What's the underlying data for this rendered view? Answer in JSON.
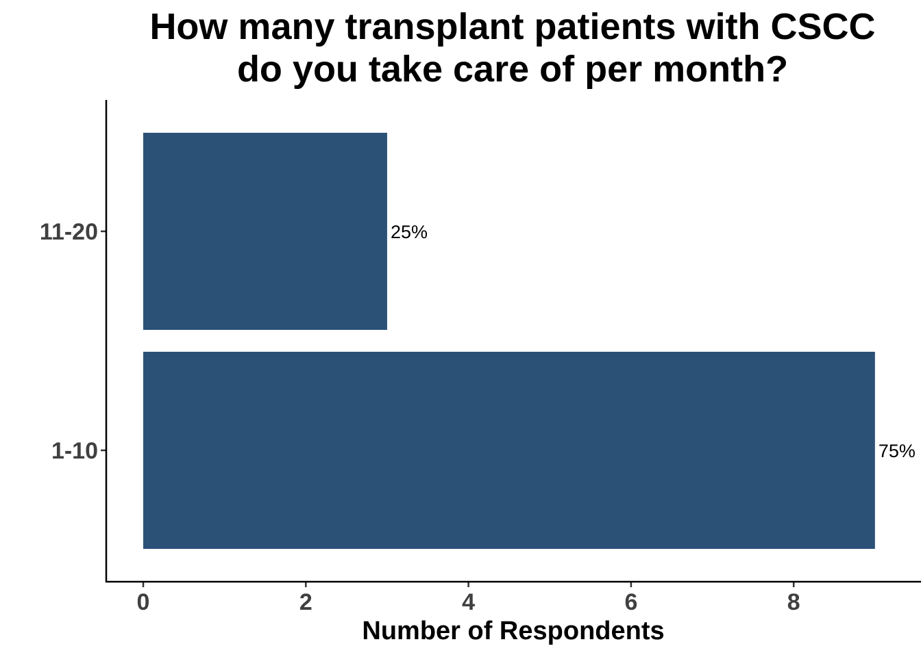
{
  "chart_data": {
    "type": "bar",
    "orientation": "horizontal",
    "title_lines": [
      "How many transplant patients with CSCC",
      "do you take care of per month?"
    ],
    "xlabel": "Number of Respondents",
    "ylabel": "",
    "categories": [
      "11-20",
      "1-10"
    ],
    "values": [
      3,
      9
    ],
    "data_labels": [
      "25%",
      "75%"
    ],
    "x_ticks": [
      0,
      2,
      4,
      6,
      8
    ],
    "xlim": [
      -0.45,
      9.8
    ],
    "bar_color": "#2c5177",
    "grid": false,
    "legend": "none"
  }
}
